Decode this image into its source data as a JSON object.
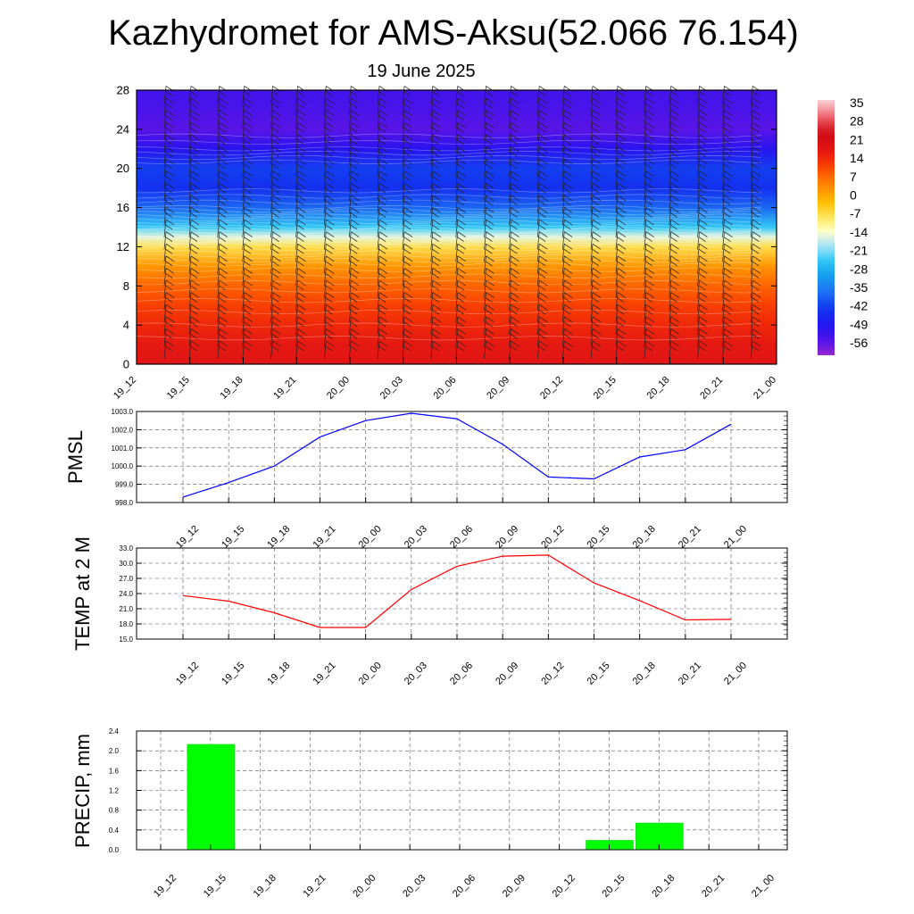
{
  "title": "Kazhydromet for AMS-Aksu(52.066 76.154)",
  "subtitle": "19 June 2025",
  "time_labels": [
    "19_12",
    "19_15",
    "19_18",
    "19_21",
    "20_00",
    "20_03",
    "20_06",
    "20_09",
    "20_12",
    "20_15",
    "20_18",
    "20_21",
    "21_00"
  ],
  "colors": {
    "pmsl_line": "#0000ff",
    "temp_line": "#ff0000",
    "precip_bar": "#00ff00",
    "grid": "#555555",
    "barb": "#222222"
  },
  "chart_data": [
    {
      "id": "profile",
      "type": "heatmap",
      "ylim": [
        0,
        28
      ],
      "yticks": [
        0,
        4,
        8,
        12,
        16,
        20,
        24,
        28
      ],
      "colorbar": {
        "labels": [
          "35",
          "28",
          "21",
          "14",
          "7",
          "0",
          "-7",
          "-14",
          "-21",
          "-28",
          "-35",
          "-42",
          "-49",
          "-56"
        ],
        "range": [
          -63,
          42
        ]
      },
      "temperature_profile": {
        "level": [
          0,
          2,
          4,
          6,
          8,
          10,
          12,
          13,
          14,
          16,
          18,
          20,
          22,
          24,
          26,
          28
        ],
        "value": [
          22,
          21,
          18,
          15,
          11,
          5,
          -5,
          -14,
          -24,
          -38,
          -45,
          -43,
          -52,
          -58,
          -56,
          -55
        ]
      },
      "wind_barbs": true
    },
    {
      "id": "pmsl",
      "type": "line",
      "ylabel": "PMSL",
      "ylim": [
        998.0,
        1003.0
      ],
      "yticks": [
        "998.0",
        "999.0",
        "1000.0",
        "1001.0",
        "1002.0",
        "1003.0"
      ],
      "values": [
        998.3,
        999.1,
        1000.0,
        1001.6,
        1002.5,
        1002.9,
        1002.6,
        1001.2,
        999.4,
        999.3,
        1000.5,
        1000.9,
        1002.3
      ]
    },
    {
      "id": "temp",
      "type": "line",
      "ylabel": "TEMP at 2 M",
      "ylim": [
        15.0,
        33.0
      ],
      "yticks": [
        "15.0",
        "18.0",
        "21.0",
        "24.0",
        "27.0",
        "30.0",
        "33.0"
      ],
      "values": [
        23.6,
        22.5,
        20.2,
        17.3,
        17.3,
        24.8,
        29.4,
        31.4,
        31.6,
        26.1,
        22.6,
        18.8,
        18.9
      ]
    },
    {
      "id": "precip",
      "type": "bar",
      "ylabel": "PRECIP, mm",
      "ylim": [
        0.0,
        2.4
      ],
      "yticks": [
        "0.0",
        "0.4",
        "0.8",
        "1.2",
        "1.6",
        "2.0",
        "2.4"
      ],
      "values": [
        0,
        2.13,
        0,
        0,
        0,
        0,
        0,
        0,
        0,
        0.19,
        0.54,
        0,
        0
      ]
    }
  ]
}
